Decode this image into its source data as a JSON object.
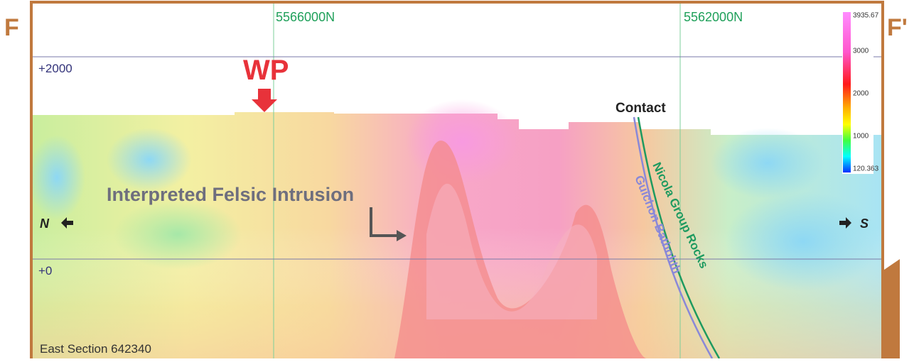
{
  "section": {
    "left_label": "F",
    "right_label": "F'",
    "title": "East Section 642340",
    "northings": [
      "5566000N",
      "5562000N"
    ],
    "elevations": [
      "+2000",
      "+0"
    ],
    "annotations": {
      "wp": "WP",
      "contact": "Contact",
      "intrusion": "Interpreted Felsic Intrusion",
      "north": "N",
      "south": "S",
      "nicola": "Nicola Group Rocks",
      "guichon": "Guichon Batholith"
    },
    "colorbar": {
      "labels": [
        "3935.67",
        "3000",
        "2000",
        "1000",
        "120.363"
      ]
    }
  }
}
